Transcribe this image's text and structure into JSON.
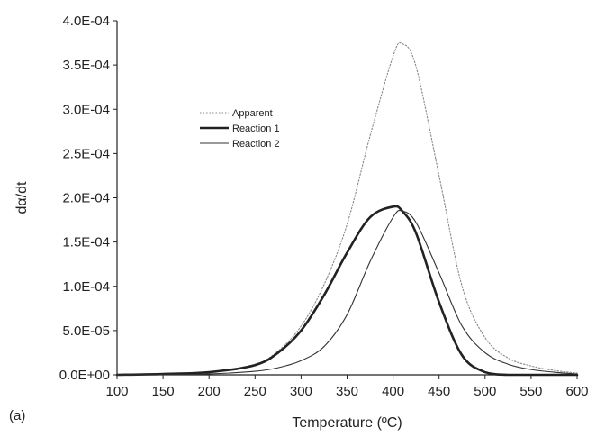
{
  "chart_data": {
    "type": "line",
    "panel_label": "(a)",
    "xlabel": "Temperature (ºC)",
    "ylabel": "dα/dt",
    "xlim": [
      100,
      600
    ],
    "ylim": [
      0,
      0.0004
    ],
    "x_ticks": [
      "100",
      "150",
      "200",
      "250",
      "300",
      "350",
      "400",
      "450",
      "500",
      "550",
      "600"
    ],
    "y_ticks": [
      "0.0E+00",
      "5.0E-05",
      "1.0E-04",
      "1.5E-04",
      "2.0E-04",
      "2.5E-04",
      "3.0E-04",
      "3.5E-04",
      "4.0E-04"
    ],
    "grid": false,
    "legend_position": "upper-left-inside",
    "series": [
      {
        "name": "Apparent",
        "style": "dotted",
        "color": "#888888",
        "x": [
          100,
          150,
          200,
          250,
          275,
          300,
          325,
          350,
          375,
          400,
          410,
          425,
          450,
          475,
          500,
          525,
          550,
          575,
          600
        ],
        "y": [
          0,
          1e-06,
          3e-06,
          1.2e-05,
          2.7e-05,
          5.5e-05,
          0.000102,
          0.00017,
          0.00027,
          0.00036,
          0.000374,
          0.000348,
          0.000225,
          0.0001,
          4.2e-05,
          1.9e-05,
          1e-05,
          5e-06,
          2e-06
        ]
      },
      {
        "name": "Reaction 1",
        "style": "thick",
        "color": "#222222",
        "x": [
          100,
          150,
          200,
          250,
          275,
          300,
          325,
          350,
          375,
          400,
          410,
          425,
          450,
          475,
          500,
          525,
          550,
          575,
          600
        ],
        "y": [
          0,
          1e-06,
          3e-06,
          1.1e-05,
          2.5e-05,
          5e-05,
          9e-05,
          0.000138,
          0.000178,
          0.00019,
          0.000185,
          0.00016,
          8.2e-05,
          2.2e-05,
          3e-06,
          0,
          0,
          0,
          0
        ]
      },
      {
        "name": "Reaction 2",
        "style": "thin",
        "color": "#333333",
        "x": [
          100,
          150,
          200,
          250,
          275,
          300,
          325,
          350,
          375,
          400,
          410,
          425,
          450,
          475,
          500,
          525,
          550,
          575,
          600
        ],
        "y": [
          0,
          0,
          1e-06,
          4e-06,
          8e-06,
          1.6e-05,
          3.2e-05,
          6.8e-05,
          0.000128,
          0.000178,
          0.000185,
          0.000172,
          0.000115,
          5.5e-05,
          2.5e-05,
          1.2e-05,
          6e-06,
          3e-06,
          1e-06
        ]
      }
    ]
  }
}
